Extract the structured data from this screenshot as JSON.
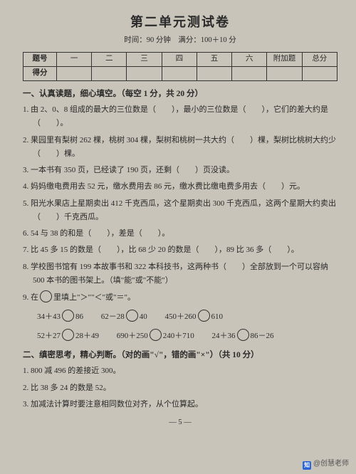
{
  "title": "第二单元测试卷",
  "subtitle": "时间：90 分钟　满分：100＋10 分",
  "scoreTable": {
    "row1Label": "题号",
    "row2Label": "得分",
    "cols": [
      "一",
      "二",
      "三",
      "四",
      "五",
      "六",
      "附加题",
      "总分"
    ]
  },
  "section1": {
    "heading": "一、认真读题，细心填空。（每空 1 分，共 20 分）",
    "q1": "1. 由 2、0、8 组成的最大的三位数是（　　），最小的三位数是（　　），它们的差大约是（　　）。",
    "q2": "2. 果园里有梨树 262 棵，桃树 304 棵，梨树和桃树一共大约（　　）棵，梨树比桃树大约少（　　）棵。",
    "q3": "3. 一本书有 350 页，已经读了 190 页，还剩（　　）页没读。",
    "q4": "4. 妈妈缴电费用去 52 元，缴水费用去 86 元，缴水费比缴电费多用去（　　）元。",
    "q5": "5. 阳光水果店上星期卖出 412 千克西瓜，这个星期卖出 300 千克西瓜，这两个星期大约卖出（　　）千克西瓜。",
    "q6": "6. 54 与 38 的和是（　　），差是（　　）。",
    "q7": "7. 比 45 多 15 的数是（　　），比 68 少 20 的数是（　　），89 比 36 多（　　）。",
    "q8": "8. 学校图书馆有 199 本故事书和 322 本科技书，这两种书（　　）全部放到一个可以容纳 500 本书的图书架上。（填\"能\"或\"不能\"）",
    "q9": "9. 在　里填上\"＞\"\"＜\"或\"＝\"。",
    "q9rows": [
      [
        {
          "l": "34＋43",
          "r": "86"
        },
        {
          "l": "62－28",
          "r": "40"
        },
        {
          "l": "450＋260",
          "r": "610"
        }
      ],
      [
        {
          "l": "52＋27",
          "r": "28＋49"
        },
        {
          "l": "690＋250",
          "r": "240＋710"
        },
        {
          "l": "24＋36",
          "r": "86－26"
        }
      ]
    ]
  },
  "section2": {
    "heading": "二、缜密思考，精心判断。（对的画\"√\"，错的画\"×\"）（共 10 分）",
    "q1": "1. 800 减 496 的差接近 300。",
    "q2": "2. 比 38 多 24 的数是 52。",
    "q3": "3. 加减法计算时要注意相同数位对齐，从个位算起。"
  },
  "footer": "— 5 —",
  "watermark": {
    "logo": "知",
    "text": "@创慧老师"
  }
}
